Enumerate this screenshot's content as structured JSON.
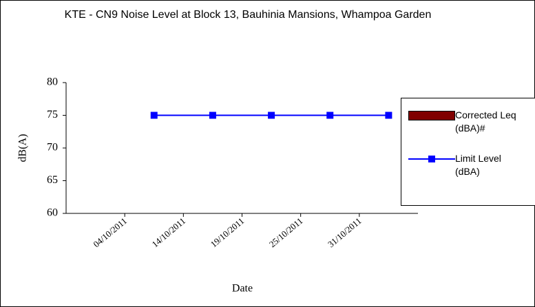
{
  "chart_data": {
    "type": "line",
    "title": "KTE - CN9 Noise Level at Block 13, Bauhinia Mansions, Whampoa Garden",
    "x_label": "Date",
    "y_label": "dB(A)",
    "categories": [
      null,
      "04/10/2011",
      "14/10/2011",
      "19/10/2011",
      "25/10/2011",
      "31/10/2011"
    ],
    "series": [
      {
        "name": "Corrected Leq (dBA)#",
        "color": "#800000",
        "values": [
          null,
          null,
          null,
          null,
          null,
          null
        ]
      },
      {
        "name": "Limit Level (dBA)",
        "color": "#0000ff",
        "values": [
          null,
          75,
          75,
          75,
          75,
          75
        ]
      }
    ],
    "ylim": [
      60,
      80
    ],
    "yticks": [
      60,
      65,
      70,
      75,
      80
    ],
    "grid": false
  }
}
